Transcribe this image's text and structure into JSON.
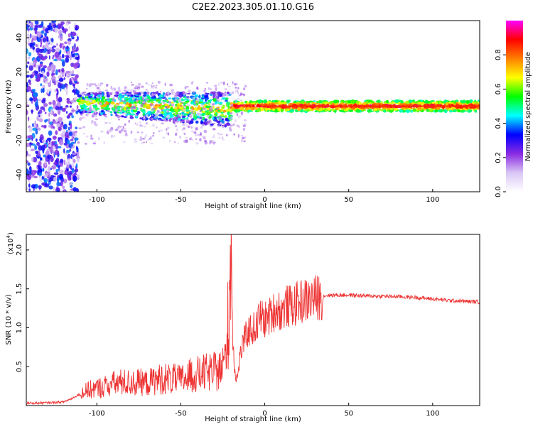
{
  "figure_title": "C2E2.2023.305.01.10.G16",
  "chart_data": [
    {
      "type": "heatmap",
      "title": "",
      "xlabel": "Height of straight line (km)",
      "ylabel": "Frequency (Hz)",
      "xlim": [
        -142,
        128
      ],
      "ylim": [
        -50,
        50
      ],
      "x_ticks": [
        -100,
        -50,
        0,
        50,
        100
      ],
      "y_ticks": [
        -40,
        -20,
        0,
        20,
        40
      ],
      "grid": false,
      "colorbar": {
        "label": "Normalized spectral amplitude",
        "range": [
          0,
          1
        ],
        "ticks": [
          0.0,
          0.2,
          0.4,
          0.6,
          0.8
        ],
        "colors": [
          "#ffffff",
          "#d9c6f5",
          "#8a2be2",
          "#0000ff",
          "#00ffff",
          "#00ff00",
          "#ffff00",
          "#ff8000",
          "#ff0000",
          "#ff00ff"
        ]
      }
    },
    {
      "type": "line",
      "title": "",
      "xlabel": "Height of straight line (km)",
      "ylabel": "SNR (10 * v/v)",
      "y_scale_label": "(x10",
      "y_scale_exp": "4",
      "xlim": [
        -142,
        128
      ],
      "ylim": [
        0,
        22000
      ],
      "x_ticks": [
        -100,
        -50,
        0,
        50,
        100
      ],
      "y_ticks": [
        5000,
        10000,
        15000,
        20000
      ],
      "y_tick_labels": [
        "0.5",
        "1.0",
        "1.5",
        "2.0"
      ],
      "grid": false,
      "series": [
        {
          "color": "#ee3333",
          "x": [
            -142,
            -130,
            -120,
            -115,
            -110,
            -105,
            -100,
            -95,
            -90,
            -85,
            -80,
            -75,
            -70,
            -65,
            -60,
            -55,
            -50,
            -45,
            -40,
            -35,
            -30,
            -27,
            -25,
            -23,
            -21,
            -20,
            -19,
            -18,
            -17,
            -16,
            -15,
            -13,
            -10,
            -8,
            -5,
            -3,
            0,
            3,
            5,
            8,
            10,
            13,
            15,
            18,
            20,
            23,
            25,
            28,
            30,
            33,
            35,
            40,
            45,
            50,
            60,
            70,
            80,
            90,
            100,
            110,
            120,
            128
          ],
          "y": [
            300,
            350,
            450,
            900,
            1500,
            2000,
            2200,
            2500,
            2800,
            3000,
            2900,
            3000,
            2900,
            3300,
            3500,
            3400,
            3300,
            3800,
            4000,
            4200,
            4300,
            4500,
            5000,
            6500,
            14000,
            21000,
            9000,
            5000,
            3500,
            3800,
            6000,
            8000,
            9500,
            9800,
            10000,
            11500,
            11000,
            11500,
            12000,
            12500,
            12000,
            12800,
            12700,
            13000,
            13200,
            13500,
            13500,
            13700,
            13800,
            14000,
            14100,
            14200,
            14200,
            14200,
            14100,
            14050,
            14000,
            13900,
            13700,
            13500,
            13400,
            13300
          ]
        }
      ]
    }
  ]
}
